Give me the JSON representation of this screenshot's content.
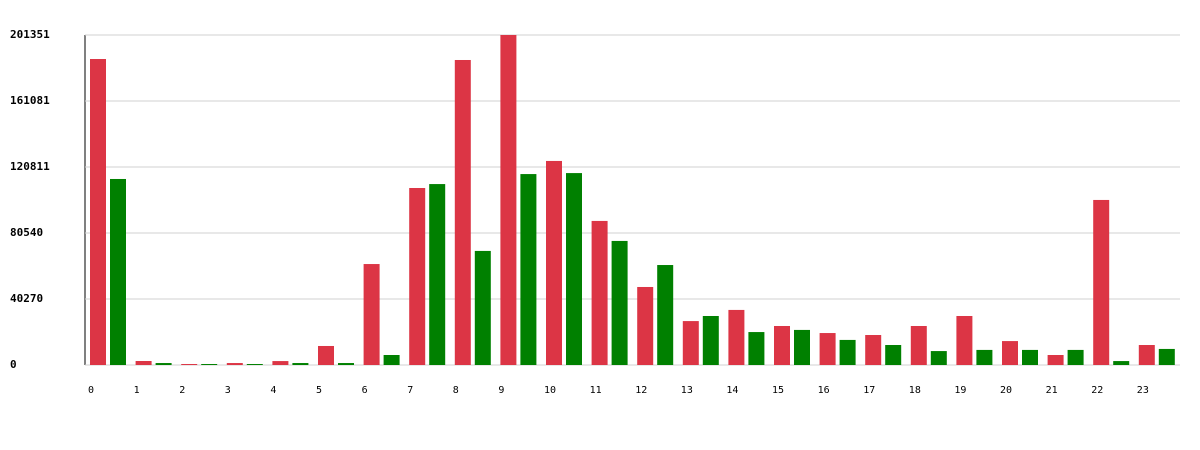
{
  "chart_data": {
    "type": "bar",
    "categories": [
      "0",
      "1",
      "2",
      "3",
      "4",
      "5",
      "6",
      "7",
      "8",
      "9",
      "10",
      "11",
      "12",
      "13",
      "14",
      "15",
      "16",
      "17",
      "18",
      "19",
      "20",
      "21",
      "22",
      "23"
    ],
    "series": [
      {
        "color": "#dc3545",
        "values": [
          186700,
          2440,
          600,
          1200,
          2400,
          11600,
          61600,
          108000,
          186100,
          201351,
          124500,
          87900,
          47600,
          26800,
          33600,
          23800,
          19500,
          18300,
          23800,
          29900,
          14600,
          6100,
          100700,
          12200
        ]
      },
      {
        "color": "#008000",
        "values": [
          113500,
          1200,
          600,
          600,
          1200,
          1200,
          6100,
          110400,
          69600,
          116500,
          117100,
          75700,
          61000,
          29900,
          20100,
          21400,
          15300,
          12200,
          8500,
          9200,
          9200,
          9200,
          2400,
          9800
        ]
      }
    ],
    "ylim": [
      0,
      201351
    ],
    "yticks": [
      0,
      40270,
      80540,
      120811,
      161081,
      201351
    ],
    "grid": true
  }
}
